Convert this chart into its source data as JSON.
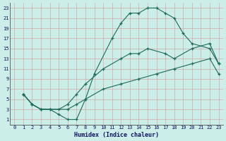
{
  "xlabel": "Humidex (Indice chaleur)",
  "bg_color": "#cceee8",
  "grid_color": "#d4a8a8",
  "line_color": "#1a6b5a",
  "line1_x": [
    1,
    2,
    3,
    4,
    5,
    6,
    7,
    8,
    9,
    11,
    12,
    13,
    14,
    15,
    16,
    17,
    18,
    19,
    20,
    22,
    23
  ],
  "line1_y": [
    6,
    4,
    3,
    3,
    2,
    1,
    1,
    5,
    10,
    17,
    20,
    22,
    22,
    23,
    23,
    22,
    21,
    18,
    16,
    15,
    12
  ],
  "line2_x": [
    1,
    2,
    3,
    4,
    5,
    6,
    7,
    8,
    10,
    12,
    13,
    14,
    15,
    17,
    18,
    20,
    22,
    23
  ],
  "line2_y": [
    6,
    4,
    3,
    3,
    3,
    4,
    6,
    8,
    11,
    13,
    14,
    14,
    15,
    14,
    13,
    15,
    16,
    12
  ],
  "line3_x": [
    1,
    2,
    3,
    6,
    7,
    8,
    10,
    12,
    14,
    16,
    18,
    20,
    22,
    23
  ],
  "line3_y": [
    6,
    4,
    3,
    3,
    4,
    5,
    7,
    8,
    9,
    10,
    11,
    12,
    13,
    10
  ],
  "xlim": [
    -0.5,
    23.5
  ],
  "ylim": [
    0,
    24
  ],
  "xticks": [
    0,
    1,
    2,
    3,
    4,
    5,
    6,
    7,
    8,
    9,
    10,
    11,
    12,
    13,
    14,
    15,
    16,
    17,
    18,
    19,
    20,
    21,
    22,
    23
  ],
  "yticks": [
    1,
    3,
    5,
    7,
    9,
    11,
    13,
    15,
    17,
    19,
    21,
    23
  ]
}
